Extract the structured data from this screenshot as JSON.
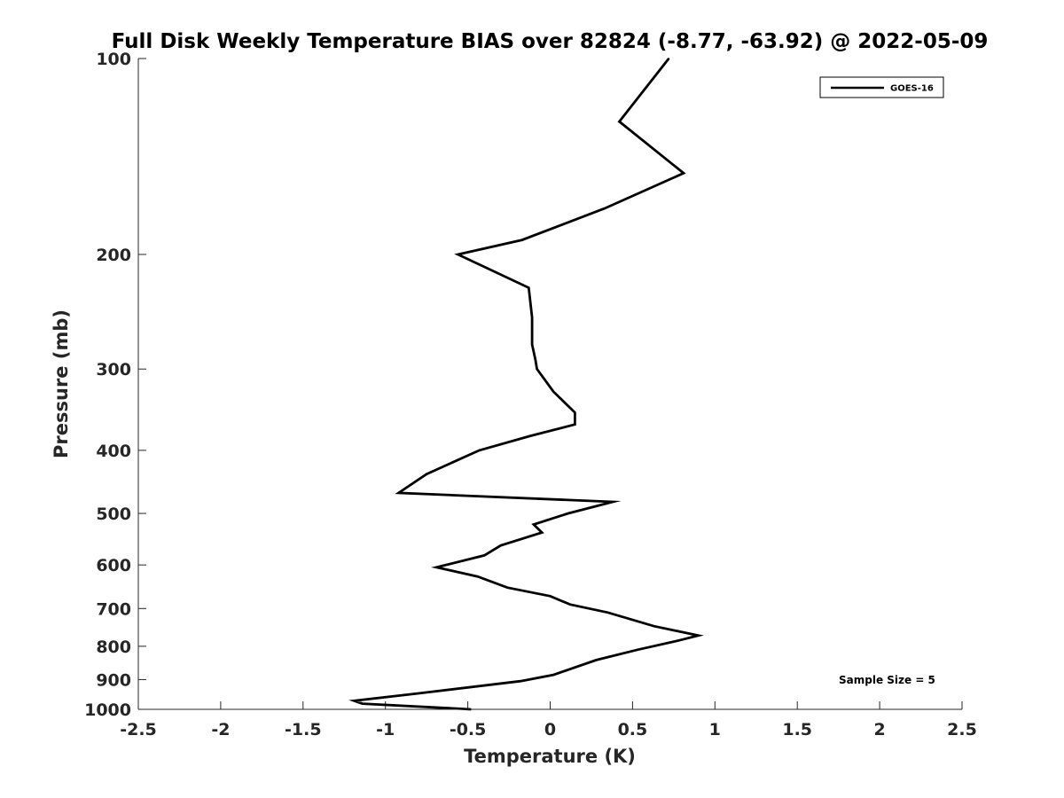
{
  "chart_data": {
    "type": "line",
    "title": "Full Disk Weekly Temperature BIAS over 82824 (-8.77, -63.92) @ 2022-05-09",
    "xlabel": "Temperature (K)",
    "ylabel": "Pressure (mb)",
    "xlim": [
      -2.5,
      2.5
    ],
    "ylim": [
      1000,
      100
    ],
    "y_scale": "log",
    "y_reversed": true,
    "grid": false,
    "legend_position": "top-right",
    "annotation": "Sample Size = 5",
    "xticks": [
      {
        "value": -2.5,
        "label": "-2.5"
      },
      {
        "value": -2,
        "label": "-2"
      },
      {
        "value": -1.5,
        "label": "-1.5"
      },
      {
        "value": -1,
        "label": "-1"
      },
      {
        "value": -0.5,
        "label": "-0.5"
      },
      {
        "value": 0,
        "label": "0"
      },
      {
        "value": 0.5,
        "label": "0.5"
      },
      {
        "value": 1,
        "label": "1"
      },
      {
        "value": 1.5,
        "label": "1.5"
      },
      {
        "value": 2,
        "label": "2"
      },
      {
        "value": 2.5,
        "label": "2.5"
      }
    ],
    "yticks": [
      {
        "value": 100,
        "label": "100"
      },
      {
        "value": 200,
        "label": "200"
      },
      {
        "value": 300,
        "label": "300"
      },
      {
        "value": 400,
        "label": "400"
      },
      {
        "value": 500,
        "label": "500"
      },
      {
        "value": 600,
        "label": "600"
      },
      {
        "value": 700,
        "label": "700"
      },
      {
        "value": 800,
        "label": "800"
      },
      {
        "value": 900,
        "label": "900"
      },
      {
        "value": 1000,
        "label": "1000"
      }
    ],
    "series": [
      {
        "name": "GOES-16",
        "color": "#000000",
        "points": [
          {
            "x": 0.72,
            "p": 100
          },
          {
            "x": 0.42,
            "p": 125
          },
          {
            "x": 0.81,
            "p": 150
          },
          {
            "x": 0.33,
            "p": 170
          },
          {
            "x": -0.17,
            "p": 190
          },
          {
            "x": -0.56,
            "p": 200
          },
          {
            "x": -0.13,
            "p": 225
          },
          {
            "x": -0.11,
            "p": 250
          },
          {
            "x": -0.11,
            "p": 275
          },
          {
            "x": -0.09,
            "p": 290
          },
          {
            "x": -0.08,
            "p": 300
          },
          {
            "x": 0.02,
            "p": 325
          },
          {
            "x": 0.15,
            "p": 350
          },
          {
            "x": 0.15,
            "p": 365
          },
          {
            "x": -0.12,
            "p": 380
          },
          {
            "x": -0.43,
            "p": 400
          },
          {
            "x": -0.75,
            "p": 435
          },
          {
            "x": -0.92,
            "p": 465
          },
          {
            "x": 0.38,
            "p": 480
          },
          {
            "x": 0.11,
            "p": 500
          },
          {
            "x": -0.1,
            "p": 520
          },
          {
            "x": -0.05,
            "p": 535
          },
          {
            "x": -0.3,
            "p": 560
          },
          {
            "x": -0.4,
            "p": 580
          },
          {
            "x": -0.69,
            "p": 605
          },
          {
            "x": -0.44,
            "p": 625
          },
          {
            "x": -0.26,
            "p": 650
          },
          {
            "x": 0.0,
            "p": 670
          },
          {
            "x": 0.12,
            "p": 690
          },
          {
            "x": 0.35,
            "p": 710
          },
          {
            "x": 0.63,
            "p": 745
          },
          {
            "x": 0.9,
            "p": 770
          },
          {
            "x": 0.77,
            "p": 785
          },
          {
            "x": 0.53,
            "p": 810
          },
          {
            "x": 0.28,
            "p": 840
          },
          {
            "x": 0.02,
            "p": 885
          },
          {
            "x": -0.18,
            "p": 905
          },
          {
            "x": -0.8,
            "p": 945
          },
          {
            "x": -1.19,
            "p": 970
          },
          {
            "x": -1.14,
            "p": 980
          },
          {
            "x": -0.48,
            "p": 1000
          }
        ]
      }
    ]
  }
}
